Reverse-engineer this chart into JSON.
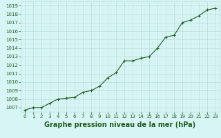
{
  "x": [
    0,
    1,
    2,
    3,
    4,
    5,
    6,
    7,
    8,
    9,
    10,
    11,
    12,
    13,
    14,
    15,
    16,
    17,
    18,
    19,
    20,
    21,
    22,
    23
  ],
  "y": [
    1006.7,
    1007.0,
    1007.0,
    1007.5,
    1008.0,
    1008.1,
    1008.2,
    1008.8,
    1009.0,
    1009.5,
    1010.5,
    1011.1,
    1012.5,
    1012.5,
    1012.8,
    1013.0,
    1014.0,
    1015.3,
    1015.5,
    1017.0,
    1017.3,
    1017.8,
    1018.5,
    1018.7
  ],
  "line_color": "#1a5c1a",
  "marker_color": "#1a5c1a",
  "bg_color": "#d8f5f5",
  "grid_major_color": "#b8dada",
  "grid_minor_color": "#cce8e8",
  "xlabel": "Graphe pression niveau de la mer (hPa)",
  "xlabel_color": "#1a5c1a",
  "tick_color": "#1a5c1a",
  "ylim": [
    1006.5,
    1019.5
  ],
  "xlim": [
    -0.5,
    23.5
  ],
  "yticks": [
    1007,
    1008,
    1009,
    1010,
    1011,
    1012,
    1013,
    1014,
    1015,
    1016,
    1017,
    1018,
    1019
  ],
  "xticks": [
    0,
    1,
    2,
    3,
    4,
    5,
    6,
    7,
    8,
    9,
    10,
    11,
    12,
    13,
    14,
    15,
    16,
    17,
    18,
    19,
    20,
    21,
    22,
    23
  ],
  "ytick_fontsize": 5.0,
  "xtick_fontsize": 5.0,
  "xlabel_fontsize": 7.0,
  "line_width": 0.8,
  "marker_size": 3.0
}
